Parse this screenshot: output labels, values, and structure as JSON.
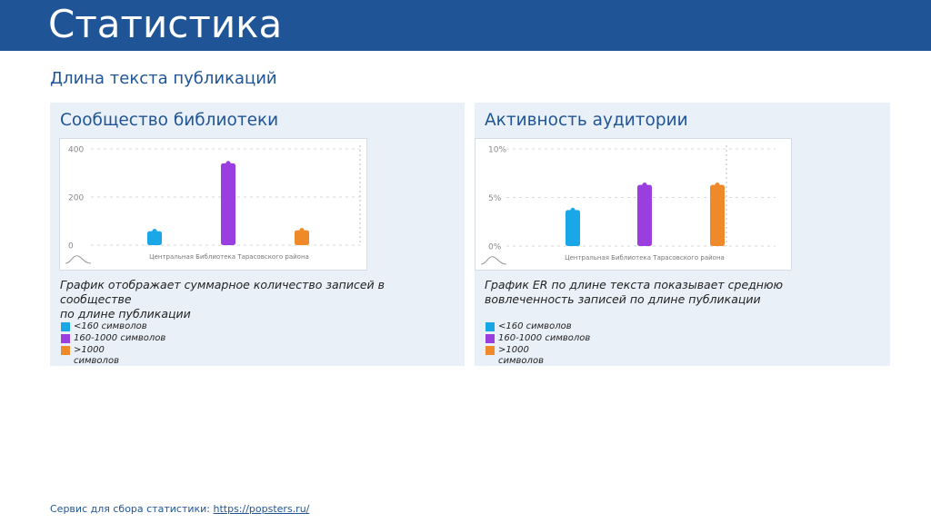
{
  "header": {
    "title": "Статистика"
  },
  "subtitle": "Длина текста публикаций",
  "panels": [
    {
      "title": "Сообщество библиотеки",
      "description_lines": [
        "График отображает суммарное количество записей в",
        "сообществе",
        "по длине публикации"
      ],
      "chart_data": {
        "type": "bar",
        "categories": [
          "<160 символов",
          "160-1000 символов",
          ">1000 символов"
        ],
        "values": [
          58,
          340,
          62
        ],
        "ylim": [
          0,
          400
        ],
        "yticks": [
          "400",
          "200",
          "0"
        ],
        "ytick_values": [
          400,
          200,
          0
        ],
        "xlabel": "Центральная Библиотека Тарасовского района",
        "colors": [
          "#1aa7e8",
          "#9b3ee0",
          "#ef8a2b"
        ]
      },
      "legend": [
        {
          "label": "<160 символов",
          "color": "#1aa7e8"
        },
        {
          "label": "160-1000 символов",
          "color": "#9b3ee0"
        },
        {
          "label": ">1000 символов",
          "color": "#ef8a2b"
        }
      ]
    },
    {
      "title": "Активность аудитории",
      "description_lines": [
        "График ER по длине текста показывает среднюю",
        "вовлеченность записей по длине публикации"
      ],
      "chart_data": {
        "type": "bar",
        "categories": [
          "<160 символов",
          "160-1000 символов",
          ">1000 символов"
        ],
        "values": [
          3.7,
          6.3,
          6.3
        ],
        "ylim": [
          0,
          10
        ],
        "yticks": [
          "10%",
          "5%",
          "0%"
        ],
        "ytick_values": [
          10,
          5,
          0
        ],
        "xlabel": "Центральная Библиотека Тарасовского района",
        "colors": [
          "#1aa7e8",
          "#9b3ee0",
          "#ef8a2b"
        ]
      },
      "legend": [
        {
          "label": "<160 символов",
          "color": "#1aa7e8"
        },
        {
          "label": "160-1000 символов",
          "color": "#9b3ee0"
        },
        {
          "label": ">1000 символов",
          "color": "#ef8a2b"
        }
      ]
    }
  ],
  "footer": {
    "text": "Сервис для сбора статистики: ",
    "link": "https://popsters.ru/"
  }
}
